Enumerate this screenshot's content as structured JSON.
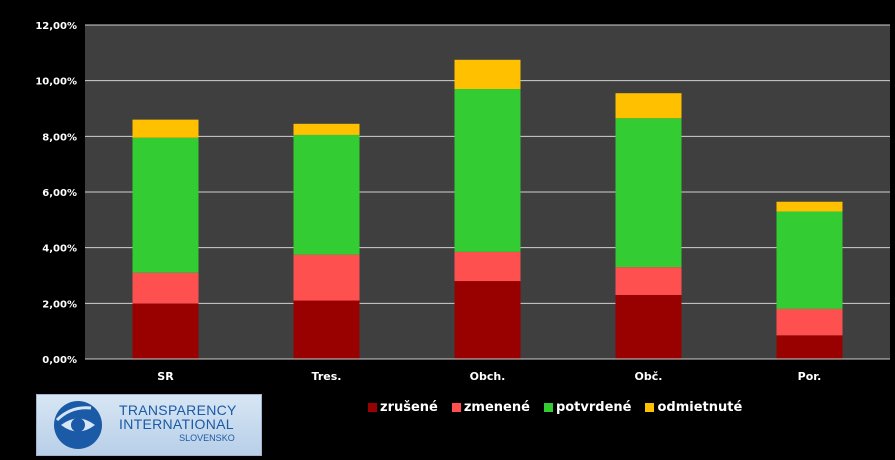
{
  "chart_data": {
    "type": "bar",
    "stacked": true,
    "categories": [
      "SR",
      "Tres.",
      "Obch.",
      "Obč.",
      "Por."
    ],
    "series": [
      {
        "name": "zrušené",
        "color": "#990000",
        "values": [
          2.0,
          2.1,
          2.8,
          2.3,
          0.85
        ]
      },
      {
        "name": "zmenené",
        "color": "#ff5050",
        "values": [
          1.1,
          1.65,
          1.05,
          1.0,
          0.95
        ]
      },
      {
        "name": "potvrdené",
        "color": "#33cc33",
        "values": [
          4.85,
          4.3,
          5.85,
          5.35,
          3.5
        ]
      },
      {
        "name": "odmietnuté",
        "color": "#ffc000",
        "values": [
          0.65,
          0.4,
          1.05,
          0.9,
          0.35
        ]
      }
    ],
    "y_ticks": [
      "0,00%",
      "2,00%",
      "4,00%",
      "6,00%",
      "8,00%",
      "10,00%",
      "12,00%"
    ],
    "ylim": [
      0,
      12
    ],
    "grid": true,
    "legend_position": "bottom",
    "plot_background": "#3f3f3f"
  },
  "logo": {
    "line1": "TRANSPARENCY",
    "line2": "INTERNATIONAL",
    "line3": "SLOVENSKO"
  }
}
